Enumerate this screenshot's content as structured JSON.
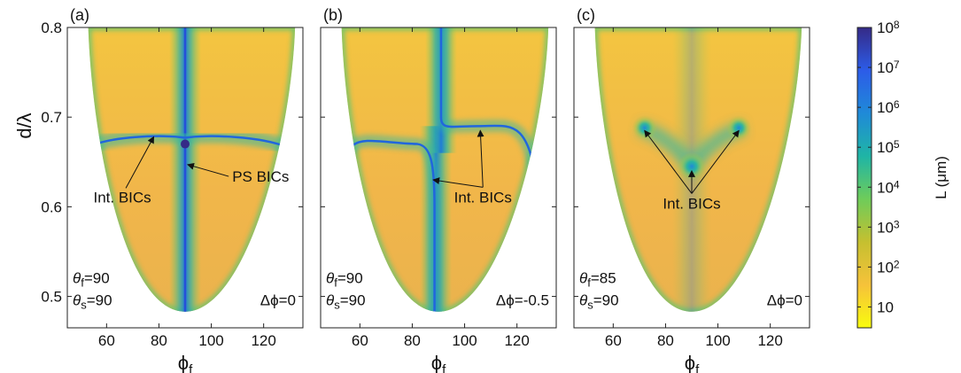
{
  "figure": {
    "ylabel_a": "d/λ",
    "xlabel_sym": "ϕ",
    "xlabel_sub": "f",
    "theta_sym": "θ",
    "delta_phi_prefix": "Δϕ="
  },
  "chart_data": [
    {
      "type": "heatmap",
      "panel": "(a)",
      "xlabel": "ϕf",
      "ylabel": "d/λ",
      "xlim": [
        45,
        135
      ],
      "ylim": [
        0.465,
        0.8
      ],
      "xticks": [
        60,
        80,
        100,
        120
      ],
      "yticks": [
        0.5,
        0.6,
        0.7,
        0.8
      ],
      "params": {
        "theta_f": "90",
        "theta_s": "90",
        "delta_phi": "0"
      },
      "annotations": [
        {
          "text": "Int. BICs",
          "target": [
            78,
            0.678
          ]
        },
        {
          "text": "PS BICs",
          "target": [
            91,
            0.647
          ]
        }
      ]
    },
    {
      "type": "heatmap",
      "panel": "(b)",
      "xlabel": "ϕf",
      "ylabel": "",
      "xlim": [
        45,
        135
      ],
      "ylim": [
        0.465,
        0.8
      ],
      "xticks": [
        60,
        80,
        100,
        120
      ],
      "yticks": [],
      "params": {
        "theta_f": "90",
        "theta_s": "90",
        "delta_phi": "-0.5"
      },
      "annotations": [
        {
          "text": "Int. BICs",
          "target": [
            88,
            0.63
          ]
        },
        {
          "text": "Int. BICs",
          "target": [
            106,
            0.685
          ]
        }
      ]
    },
    {
      "type": "heatmap",
      "panel": "(c)",
      "xlabel": "ϕf",
      "ylabel": "",
      "xlim": [
        45,
        135
      ],
      "ylim": [
        0.465,
        0.8
      ],
      "xticks": [
        60,
        80,
        100,
        120
      ],
      "yticks": [],
      "params": {
        "theta_f": "85",
        "theta_s": "90",
        "delta_phi": "0"
      },
      "annotations": [
        {
          "text": "Int. BICs",
          "target": [
            72,
            0.685
          ]
        },
        {
          "text": "Int. BICs",
          "target": [
            90,
            0.64
          ]
        },
        {
          "text": "Int. BICs",
          "target": [
            108,
            0.685
          ]
        }
      ]
    }
  ],
  "colorbar": {
    "label": "L (μm)",
    "scale": "log",
    "range": [
      3,
      100000000
    ],
    "ticks": [
      {
        "value": 10,
        "base": "10",
        "exp": ""
      },
      {
        "value": 100,
        "base": "10",
        "exp": "2"
      },
      {
        "value": 1000,
        "base": "10",
        "exp": "3"
      },
      {
        "value": 10000,
        "base": "10",
        "exp": "4"
      },
      {
        "value": 100000,
        "base": "10",
        "exp": "5"
      },
      {
        "value": 1000000,
        "base": "10",
        "exp": "6"
      },
      {
        "value": 10000000,
        "base": "10",
        "exp": "7"
      },
      {
        "value": 100000000,
        "base": "10",
        "exp": "8"
      }
    ],
    "colors": [
      "#f9fb0e",
      "#f6c23a",
      "#c5c030",
      "#6ecc5a",
      "#1fb5a5",
      "#1f8ad8",
      "#2c5ce8",
      "#352a87"
    ]
  }
}
